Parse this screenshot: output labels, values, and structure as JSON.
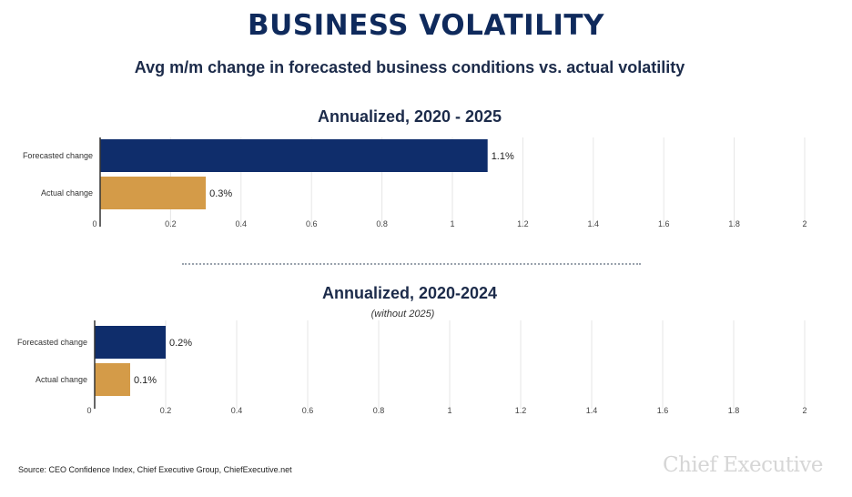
{
  "title": "BUSINESS VOLATILITY",
  "subtitle": "Avg m/m change in forecasted business conditions vs. actual volatility",
  "colors": {
    "forecasted": "#0f2d6b",
    "actual": "#d49b48",
    "grid": "#e6e6e6",
    "axis": "#333333"
  },
  "chart_data": [
    {
      "type": "bar",
      "orientation": "horizontal",
      "title": "Annualized, 2020 - 2025",
      "note": "",
      "categories": [
        "Forecasted change",
        "Actual change"
      ],
      "values": [
        1.1,
        0.3
      ],
      "value_labels": [
        "1.1%",
        "0.3%"
      ],
      "xlim": [
        0,
        2
      ],
      "xticks": [
        "0",
        "0.2",
        "0.4",
        "0.6",
        "0.8",
        "1",
        "1.2",
        "1.4",
        "1.6",
        "1.8",
        "2"
      ],
      "grid": true
    },
    {
      "type": "bar",
      "orientation": "horizontal",
      "title": "Annualized, 2020-2024",
      "note": "(without 2025)",
      "categories": [
        "Forecasted change",
        "Actual change"
      ],
      "values": [
        0.2,
        0.1
      ],
      "value_labels": [
        "0.2%",
        "0.1%"
      ],
      "xlim": [
        0,
        2
      ],
      "xticks": [
        "0",
        "0.2",
        "0.4",
        "0.6",
        "0.8",
        "1",
        "1.2",
        "1.4",
        "1.6",
        "1.8",
        "2"
      ],
      "grid": true
    }
  ],
  "source": "Source: CEO Confidence Index, Chief Executive Group, ChiefExecutive.net",
  "brand": "Chief Executive"
}
